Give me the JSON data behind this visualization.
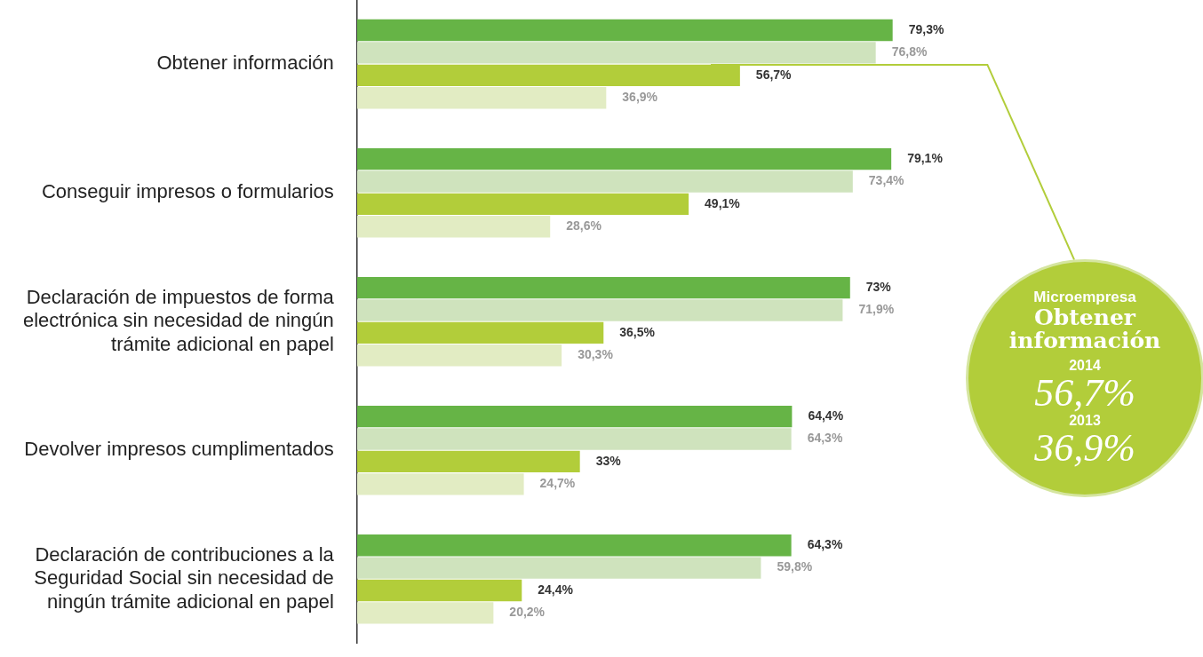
{
  "chart_data": {
    "type": "bar",
    "orientation": "horizontal",
    "categories": [
      "Obtener información",
      "Conseguir impresos o formularios",
      "Declaración de impuestos de forma electrónica sin necesidad de ningún trámite adicional en papel",
      "Devolver impresos cumplimentados",
      "Declaración de contribuciones a la Seguridad Social sin necesidad de ningún trámite adicional en papel"
    ],
    "series": [
      {
        "color": "#66b446",
        "values": [
          79.3,
          79.1,
          73,
          64.4,
          64.3
        ],
        "value_labels": [
          "79,3%",
          "79,1%",
          "73%",
          "64,4%",
          "64,3%"
        ]
      },
      {
        "color": "#cfe3bd",
        "values": [
          76.8,
          73.4,
          71.9,
          64.3,
          59.8
        ],
        "value_labels": [
          "76,8%",
          "73,4%",
          "71,9%",
          "64,3%",
          "59,8%"
        ]
      },
      {
        "color": "#b2cd3a",
        "values": [
          56.7,
          49.1,
          36.5,
          33,
          24.4
        ],
        "value_labels": [
          "56,7%",
          "49,1%",
          "36,5%",
          "33%",
          "24,4%"
        ]
      },
      {
        "color": "#e2ecc3",
        "values": [
          36.9,
          28.6,
          30.3,
          24.7,
          20.2
        ],
        "value_labels": [
          "36,9%",
          "28,6%",
          "30,3%",
          "24,7%",
          "20,2%"
        ]
      }
    ],
    "annotations": [
      "Microempresa",
      "Obtener información",
      "2014",
      "56,7%",
      "2013",
      "36,9%"
    ]
  }
}
